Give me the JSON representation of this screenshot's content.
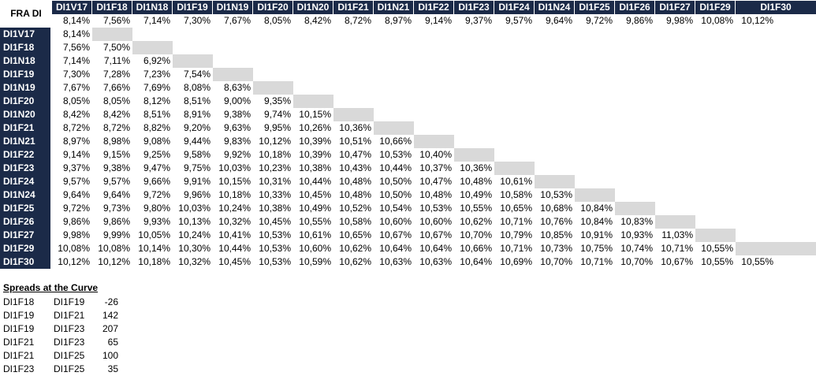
{
  "title": "FRA DI",
  "columns": [
    "DI1V17",
    "DI1F18",
    "DI1N18",
    "DI1F19",
    "DI1N19",
    "DI1F20",
    "DI1N20",
    "DI1F21",
    "DI1N21",
    "DI1F22",
    "DI1F23",
    "DI1F24",
    "DI1N24",
    "DI1F25",
    "DI1F26",
    "DI1F27",
    "DI1F29",
    "DI1F30"
  ],
  "top_rates": [
    "8,14%",
    "7,56%",
    "7,14%",
    "7,30%",
    "7,67%",
    "8,05%",
    "8,42%",
    "8,72%",
    "8,97%",
    "9,14%",
    "9,37%",
    "9,57%",
    "9,64%",
    "9,72%",
    "9,86%",
    "9,98%",
    "10,08%",
    "10,12%"
  ],
  "rows": [
    {
      "label": "DI1V17",
      "rate": "8,14%",
      "cells": []
    },
    {
      "label": "DI1F18",
      "rate": "7,56%",
      "cells": [
        "7,50%"
      ]
    },
    {
      "label": "DI1N18",
      "rate": "7,14%",
      "cells": [
        "7,11%",
        "6,92%"
      ]
    },
    {
      "label": "DI1F19",
      "rate": "7,30%",
      "cells": [
        "7,28%",
        "7,23%",
        "7,54%"
      ]
    },
    {
      "label": "DI1N19",
      "rate": "7,67%",
      "cells": [
        "7,66%",
        "7,69%",
        "8,08%",
        "8,63%"
      ]
    },
    {
      "label": "DI1F20",
      "rate": "8,05%",
      "cells": [
        "8,05%",
        "8,12%",
        "8,51%",
        "9,00%",
        "9,35%"
      ]
    },
    {
      "label": "DI1N20",
      "rate": "8,42%",
      "cells": [
        "8,42%",
        "8,51%",
        "8,91%",
        "9,38%",
        "9,74%",
        "10,15%"
      ]
    },
    {
      "label": "DI1F21",
      "rate": "8,72%",
      "cells": [
        "8,72%",
        "8,82%",
        "9,20%",
        "9,63%",
        "9,95%",
        "10,26%",
        "10,36%"
      ]
    },
    {
      "label": "DI1N21",
      "rate": "8,97%",
      "cells": [
        "8,98%",
        "9,08%",
        "9,44%",
        "9,83%",
        "10,12%",
        "10,39%",
        "10,51%",
        "10,66%"
      ]
    },
    {
      "label": "DI1F22",
      "rate": "9,14%",
      "cells": [
        "9,15%",
        "9,25%",
        "9,58%",
        "9,92%",
        "10,18%",
        "10,39%",
        "10,47%",
        "10,53%",
        "10,40%"
      ]
    },
    {
      "label": "DI1F23",
      "rate": "9,37%",
      "cells": [
        "9,38%",
        "9,47%",
        "9,75%",
        "10,03%",
        "10,23%",
        "10,38%",
        "10,43%",
        "10,44%",
        "10,37%",
        "10,36%"
      ]
    },
    {
      "label": "DI1F24",
      "rate": "9,57%",
      "cells": [
        "9,57%",
        "9,66%",
        "9,91%",
        "10,15%",
        "10,31%",
        "10,44%",
        "10,48%",
        "10,50%",
        "10,47%",
        "10,48%",
        "10,61%"
      ]
    },
    {
      "label": "DI1N24",
      "rate": "9,64%",
      "cells": [
        "9,64%",
        "9,72%",
        "9,96%",
        "10,18%",
        "10,33%",
        "10,45%",
        "10,48%",
        "10,50%",
        "10,48%",
        "10,49%",
        "10,58%",
        "10,53%"
      ]
    },
    {
      "label": "DI1F25",
      "rate": "9,72%",
      "cells": [
        "9,73%",
        "9,80%",
        "10,03%",
        "10,24%",
        "10,38%",
        "10,49%",
        "10,52%",
        "10,54%",
        "10,53%",
        "10,55%",
        "10,65%",
        "10,68%",
        "10,84%"
      ]
    },
    {
      "label": "DI1F26",
      "rate": "9,86%",
      "cells": [
        "9,86%",
        "9,93%",
        "10,13%",
        "10,32%",
        "10,45%",
        "10,55%",
        "10,58%",
        "10,60%",
        "10,60%",
        "10,62%",
        "10,71%",
        "10,76%",
        "10,84%",
        "10,83%"
      ]
    },
    {
      "label": "DI1F27",
      "rate": "9,98%",
      "cells": [
        "9,99%",
        "10,05%",
        "10,24%",
        "10,41%",
        "10,53%",
        "10,61%",
        "10,65%",
        "10,67%",
        "10,67%",
        "10,70%",
        "10,79%",
        "10,85%",
        "10,91%",
        "10,93%",
        "11,03%"
      ]
    },
    {
      "label": "DI1F29",
      "rate": "10,08%",
      "cells": [
        "10,08%",
        "10,14%",
        "10,30%",
        "10,44%",
        "10,53%",
        "10,60%",
        "10,62%",
        "10,64%",
        "10,64%",
        "10,66%",
        "10,71%",
        "10,73%",
        "10,75%",
        "10,74%",
        "10,71%",
        "10,55%"
      ]
    },
    {
      "label": "DI1F30",
      "rate": "10,12%",
      "cells": [
        "10,12%",
        "10,18%",
        "10,32%",
        "10,45%",
        "10,53%",
        "10,59%",
        "10,62%",
        "10,63%",
        "10,63%",
        "10,64%",
        "10,69%",
        "10,70%",
        "10,71%",
        "10,70%",
        "10,67%",
        "10,55%",
        "10,55%"
      ]
    }
  ],
  "spreads": {
    "title": "Spreads at the Curve",
    "items": [
      {
        "from": "DI1F18",
        "to": "DI1F19",
        "value": "-26"
      },
      {
        "from": "DI1F19",
        "to": "DI1F21",
        "value": "142"
      },
      {
        "from": "DI1F19",
        "to": "DI1F23",
        "value": "207"
      },
      {
        "from": "DI1F21",
        "to": "DI1F23",
        "value": "65"
      },
      {
        "from": "DI1F21",
        "to": "DI1F25",
        "value": "100"
      },
      {
        "from": "DI1F23",
        "to": "DI1F25",
        "value": "35"
      }
    ]
  }
}
